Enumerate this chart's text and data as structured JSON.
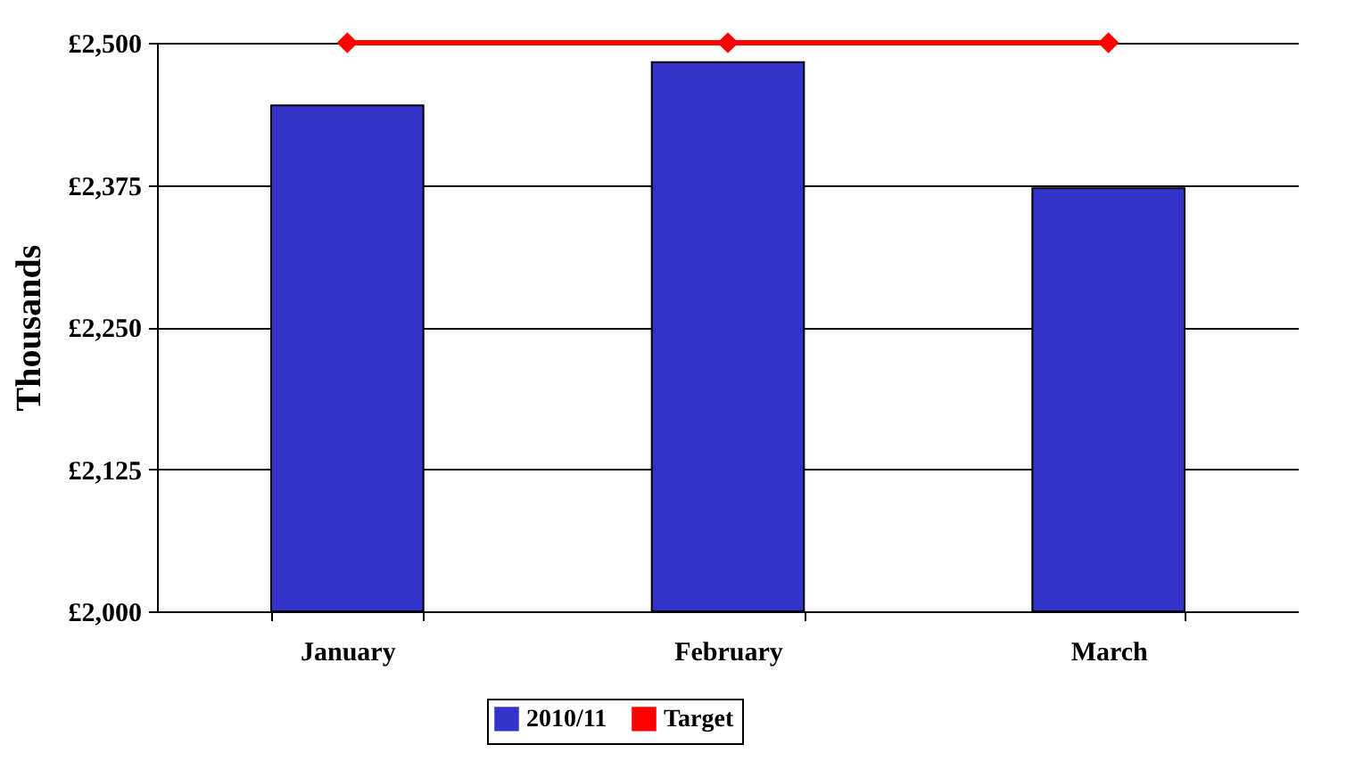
{
  "chart_data": {
    "type": "bar",
    "ylabel": "Thousands",
    "categories": [
      "January",
      "February",
      "March"
    ],
    "series": [
      {
        "name": "2010/11",
        "color": "#3333cc",
        "values": [
          2445,
          2483,
          2372
        ]
      },
      {
        "name": "Target",
        "type": "line",
        "color": "#ff0000",
        "marker": "diamond",
        "values": [
          2500,
          2500,
          2500
        ]
      }
    ],
    "ylim": [
      2000,
      2500
    ],
    "yticks": [
      {
        "value": 2000,
        "label": "£2,000"
      },
      {
        "value": 2125,
        "label": "£2,125"
      },
      {
        "value": 2250,
        "label": "£2,250"
      },
      {
        "value": 2375,
        "label": "£2,375"
      },
      {
        "value": 2500,
        "label": "£2,500"
      }
    ],
    "grid": "y",
    "legend": "bottom"
  }
}
